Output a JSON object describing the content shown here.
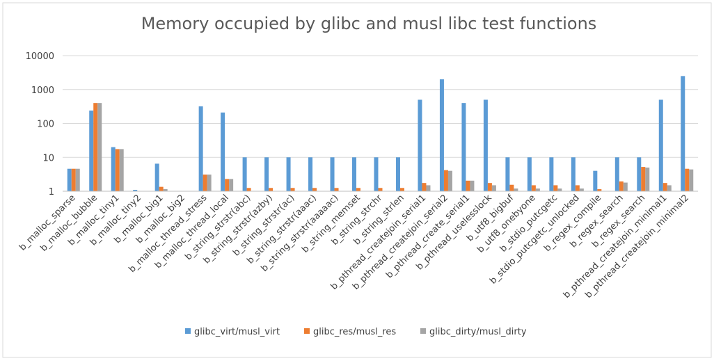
{
  "chart_data": {
    "type": "bar",
    "title": "Memory occupied by glibc and musl libc test functions",
    "y_scale": "log",
    "ylim": [
      1,
      10000
    ],
    "y_ticks": [
      "1",
      "10",
      "100",
      "1000",
      "10000"
    ],
    "grid": true,
    "legend_position": "bottom",
    "categories": [
      "b_malloc_sparse",
      "b_malloc_bubble",
      "b_malloc_tiny1",
      "b_malloc_tiny2",
      "b_malloc_big1",
      "b_malloc_big2",
      "b_malloc_thread_stress",
      "b_malloc_thread_local",
      "b_string_strstr(abc)",
      "b_string_strstr(azby)",
      "b_string_strstr(ac)",
      "b_string_strstr(aaac)",
      "b_string_strstr(aaaaac)",
      "b_string_memset",
      "b_string_strchr",
      "b_string_strlen",
      "b_pthread_createjoin_serial1",
      "b_pthread_createjoin_serial2",
      "b_pthread_create_serial1",
      "b_pthread_uselesslock",
      "b_utf8_bigbuf",
      "b_utf8_onebyone",
      "b_stdio_putcgetc",
      "b_stdio_putcgetc_unlocked",
      "b_regex_compile",
      "b_regex_search",
      "b_regex_search",
      "b_pthread_createjoin_minimal1",
      "b_pthread_createjoin_minimal2"
    ],
    "series": [
      {
        "name": "glibc_virt/musl_virt",
        "color": "#5b9bd5",
        "values": [
          4.6,
          240,
          20,
          1.1,
          6.5,
          1,
          320,
          210,
          10,
          10,
          10,
          10,
          10,
          10,
          10,
          10,
          500,
          2000,
          400,
          500,
          10,
          10,
          10,
          10,
          4,
          10,
          10,
          500,
          2500
        ]
      },
      {
        "name": "glibc_res/musl_res",
        "color": "#ed7d31",
        "values": [
          4.6,
          400,
          17.5,
          1,
          1.35,
          1,
          3.1,
          2.3,
          1.25,
          1.25,
          1.25,
          1.25,
          1.25,
          1.25,
          1.25,
          1.25,
          1.75,
          4.2,
          2.05,
          1.75,
          1.55,
          1.5,
          1.5,
          1.5,
          1.15,
          1.95,
          5.2,
          1.75,
          4.6
        ]
      },
      {
        "name": "glibc_dirty/musl_dirty",
        "color": "#a5a5a5",
        "values": [
          4.6,
          400,
          17.5,
          1,
          1.15,
          1,
          3.1,
          2.3,
          1,
          1,
          1,
          1,
          1,
          1,
          1,
          1,
          1.5,
          4,
          2.05,
          1.5,
          1.2,
          1.2,
          1.2,
          1.2,
          1,
          1.8,
          5,
          1.5,
          4.4
        ]
      }
    ]
  }
}
